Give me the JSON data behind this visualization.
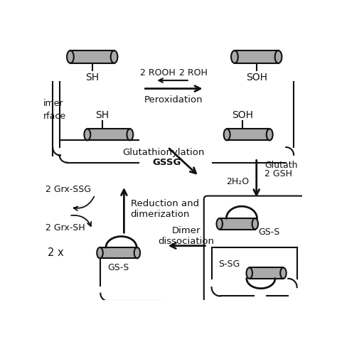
{
  "bg_color": "#ffffff",
  "cylinder_fill": "#aaaaaa",
  "cylinder_edge": "#111111",
  "line_color": "#111111",
  "lw": 1.5,
  "fs_main": 9.5,
  "fs_label": 9,
  "labels": {
    "SH_top_left": "SH",
    "SOH_top_right": "SOH",
    "SH_mid_left": "SH",
    "SOH_mid_right": "SOH",
    "peroxidation": "Peroxidation",
    "two_ROOH": "2 ROOH",
    "two_ROH": "2 ROH",
    "glutathionylation": "Glutathionylation",
    "GSSG": "GSSG",
    "reduction": "Reduction and\ndimerization",
    "two_Grx_SSG": "2 Grx-SSG",
    "two_Grx_SH": "2 Grx-SH",
    "dimer_top": "imer",
    "dimer_bot": "rface",
    "GS_S_left": "GS-S",
    "GS_S_right": "GS-S",
    "S_SG": "S-SG",
    "dimer_dissociation": "Dimer\ndissociation",
    "two_x": "2 x",
    "two_H2O": "2H₂O",
    "glutath_right": "Glutath",
    "two_GSH": "2 GSH"
  }
}
